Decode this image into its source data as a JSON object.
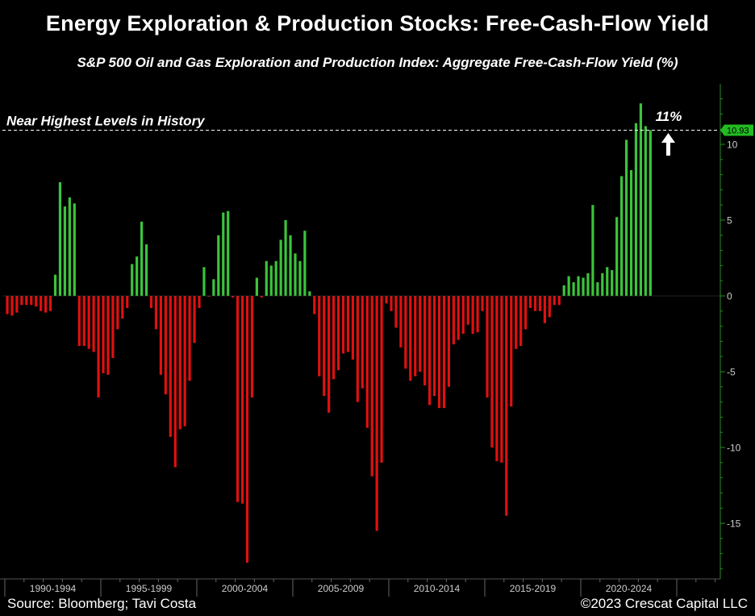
{
  "title": "Energy Exploration & Production Stocks: Free-Cash-Flow Yield",
  "subtitle": "S&P 500 Oil and Gas Exploration and Production Index: Aggregate Free-Cash-Flow Yield (%)",
  "source": "Source: Bloomberg; Tavi Costa",
  "copyright": "©2023 Crescat Capital LLC",
  "colors": {
    "positive": "#3bc43b",
    "negative": "#e01010",
    "background": "#000000",
    "axis": "#2a8a2a",
    "last_value_badge": "#22bb22"
  },
  "chart_data": {
    "type": "bar",
    "frequency": "quarterly",
    "ylim": [
      -19,
      14
    ],
    "yticks": [
      10,
      5,
      0,
      -5,
      -10,
      -15
    ],
    "ytick_labels": [
      "10",
      "5",
      "0",
      "-5",
      "-10",
      "-15"
    ],
    "x_period_labels": [
      "1990-1994",
      "1995-1999",
      "2000-2004",
      "2005-2009",
      "2010-2014",
      "2015-2019",
      "2020-2024"
    ],
    "last_value_label": "10.93",
    "reference_line": {
      "value": 10.93,
      "style": "dashed",
      "label": "Near Highest Levels in History"
    },
    "annotation": {
      "text": "11%",
      "arrow": "up"
    },
    "series": [
      {
        "values": [
          -1.2,
          -1.3,
          -1.1,
          -0.6,
          -0.6,
          -0.6,
          -0.7,
          -1.0,
          -1.1,
          -1.0,
          1.4,
          7.5,
          5.9,
          6.5,
          6.1,
          -3.3,
          -3.3,
          -3.5,
          -3.7,
          -6.7,
          -5.1,
          -5.2,
          -4.1,
          -2.2,
          -1.5,
          -0.8,
          2.1,
          2.6,
          4.9,
          3.4,
          -0.8,
          -2.2,
          -5.2,
          -6.5,
          -9.3,
          -11.3,
          -8.8,
          -8.6,
          -5.6,
          -3.1,
          -0.8,
          1.9,
          -0.05,
          1.1,
          4.0,
          5.5,
          5.6,
          -0.1,
          -13.6,
          -13.7,
          -17.6,
          -6.7,
          1.2,
          -0.1,
          2.3,
          2.0,
          2.3,
          3.7,
          5.0,
          4.0,
          2.8,
          2.3,
          4.3,
          0.3,
          -1.2,
          -5.3,
          -6.6,
          -7.7,
          -5.5,
          -4.9,
          -3.8,
          -3.7,
          -4.2,
          -7.0,
          -6.1,
          -8.7,
          -11.9,
          -15.5,
          -11.0,
          -0.5,
          -1.0,
          -2.1,
          -3.4,
          -4.8,
          -5.6,
          -5.3,
          -5.0,
          -5.9,
          -7.2,
          -6.6,
          -7.4,
          -7.4,
          -6.0,
          -3.2,
          -2.9,
          -2.5,
          -1.9,
          -2.5,
          -2.4,
          -1.0,
          -6.7,
          -10.0,
          -10.9,
          -11.0,
          -14.5,
          -7.3,
          -3.5,
          -3.3,
          -2.2,
          -0.8,
          -1.0,
          -1.0,
          -1.8,
          -1.4,
          -0.6,
          -0.6,
          0.7,
          1.3,
          0.9,
          1.3,
          1.2,
          1.5,
          6.0,
          0.9,
          1.5,
          1.9,
          1.7,
          5.2,
          7.9,
          10.3,
          8.3,
          11.4,
          12.7,
          11.2,
          10.93
        ]
      }
    ]
  }
}
